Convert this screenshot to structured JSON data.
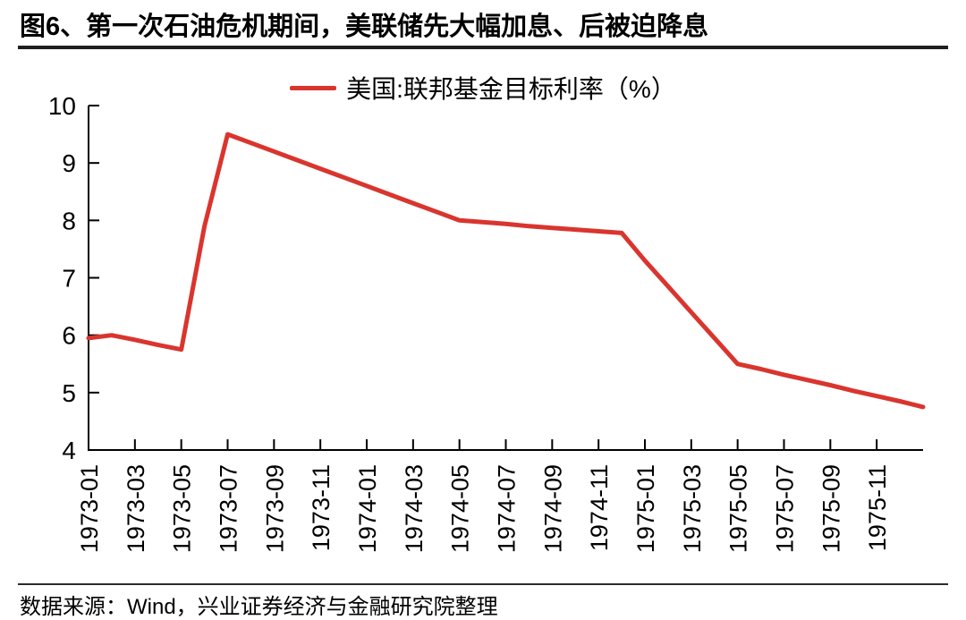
{
  "title": "图6、第一次石油危机期间，美联储先大幅加息、后被迫降息",
  "legend": {
    "label": "美国:联邦基金目标利率（%）"
  },
  "footer": {
    "source": "数据来源：Wind，兴业证券经济与金融研究院整理"
  },
  "colors": {
    "series": "#d9352e",
    "axis": "#000000",
    "text": "#000000",
    "title_rule": "#1f1f1f",
    "footer_rule": "#2a2a2a"
  },
  "chart_data": {
    "type": "line",
    "title": "图6、第一次石油危机期间，美联储先大幅加息、后被迫降息",
    "xlabel": "",
    "ylabel": "",
    "ylim": [
      4,
      10
    ],
    "y_ticks": [
      10,
      9,
      8,
      7,
      6,
      5,
      4
    ],
    "grid": false,
    "legend_position": "top-center",
    "x_tick_labels": [
      "1973-01",
      "1973-03",
      "1973-05",
      "1973-07",
      "1973-09",
      "1973-11",
      "1974-01",
      "1974-03",
      "1974-05",
      "1974-07",
      "1974-09",
      "1974-11",
      "1975-01",
      "1975-03",
      "1975-05",
      "1975-07",
      "1975-09",
      "1975-11"
    ],
    "series": [
      {
        "name": "美国:联邦基金目标利率（%）",
        "color": "#d9352e",
        "x": [
          "1973-01",
          "1973-02",
          "1973-03",
          "1973-04",
          "1973-05",
          "1973-06",
          "1973-07",
          "1973-08",
          "1973-09",
          "1973-10",
          "1973-11",
          "1973-12",
          "1974-01",
          "1974-02",
          "1974-03",
          "1974-04",
          "1974-05",
          "1974-06",
          "1974-07",
          "1974-08",
          "1974-09",
          "1974-10",
          "1974-11",
          "1974-12",
          "1975-01",
          "1975-02",
          "1975-03",
          "1975-04",
          "1975-05",
          "1975-06",
          "1975-07",
          "1975-08",
          "1975-09",
          "1975-10",
          "1975-11",
          "1975-12",
          "1976-01"
        ],
        "values": [
          5.95,
          6.0,
          5.92,
          5.83,
          5.75,
          7.9,
          9.5,
          9.35,
          9.2,
          9.05,
          8.9,
          8.75,
          8.6,
          8.45,
          8.3,
          8.15,
          8.0,
          7.97,
          7.94,
          7.9,
          7.87,
          7.84,
          7.81,
          7.78,
          7.3,
          6.85,
          6.4,
          5.95,
          5.5,
          5.41,
          5.31,
          5.22,
          5.13,
          5.03,
          4.94,
          4.85,
          4.75
        ]
      }
    ]
  }
}
